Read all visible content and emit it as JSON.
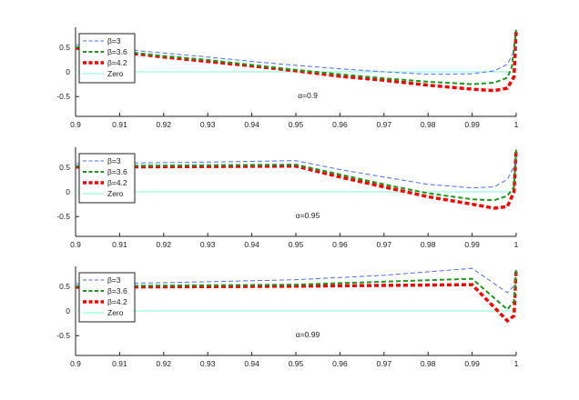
{
  "chart_data": [
    {
      "type": "line",
      "annotation": "α=0.9",
      "xlim": [
        0.9,
        1.0
      ],
      "ylim": [
        -0.9,
        0.9
      ],
      "xticks": [
        "0.9",
        "0.91",
        "0.92",
        "0.93",
        "0.94",
        "0.95",
        "0.96",
        "0.97",
        "0.98",
        "0.99",
        "1"
      ],
      "yticks": [
        "0.5",
        "0",
        "-0.5"
      ],
      "ytick_values": [
        0.5,
        0,
        -0.5
      ],
      "legend_position": "top-left",
      "series": [
        {
          "name": "β=3",
          "color": "#4b6cf5",
          "style": "thin-dashed",
          "x": [
            0.9,
            0.915,
            0.92,
            0.93,
            0.94,
            0.95,
            0.96,
            0.97,
            0.98,
            0.99,
            0.995,
            0.998,
            1.0
          ],
          "y": [
            0.55,
            0.42,
            0.38,
            0.3,
            0.21,
            0.13,
            0.06,
            0.0,
            -0.05,
            -0.04,
            0.02,
            0.15,
            0.5
          ]
        },
        {
          "name": "β=3.6",
          "color": "#1a9a1a",
          "style": "medium-dashed",
          "x": [
            0.9,
            0.915,
            0.92,
            0.93,
            0.94,
            0.95,
            0.96,
            0.97,
            0.98,
            0.99,
            0.995,
            0.998,
            0.999,
            1.0
          ],
          "y": [
            0.5,
            0.37,
            0.32,
            0.24,
            0.14,
            0.04,
            -0.05,
            -0.13,
            -0.2,
            -0.25,
            -0.22,
            -0.12,
            0.1,
            0.85
          ]
        },
        {
          "name": "β=4.2",
          "color": "#ff0000",
          "style": "thick-dashed",
          "x": [
            0.9,
            0.915,
            0.92,
            0.93,
            0.94,
            0.95,
            0.96,
            0.97,
            0.98,
            0.99,
            0.995,
            0.998,
            0.9995,
            1.0
          ],
          "y": [
            0.48,
            0.35,
            0.3,
            0.21,
            0.12,
            0.02,
            -0.09,
            -0.17,
            -0.27,
            -0.35,
            -0.38,
            -0.33,
            -0.1,
            0.85
          ]
        },
        {
          "name": "Zero",
          "color": "#7fffd4",
          "style": "solid",
          "x": [
            0.9,
            1.0
          ],
          "y": [
            0,
            0
          ]
        }
      ]
    },
    {
      "type": "line",
      "annotation": "α=0.95",
      "xlim": [
        0.9,
        1.0
      ],
      "ylim": [
        -0.9,
        0.9
      ],
      "xticks": [
        "0.9",
        "0.91",
        "0.92",
        "0.93",
        "0.94",
        "0.95",
        "0.96",
        "0.97",
        "0.98",
        "0.99",
        "1"
      ],
      "yticks": [
        "0.5",
        "0",
        "-0.5"
      ],
      "ytick_values": [
        0.5,
        0,
        -0.5
      ],
      "legend_position": "top-left",
      "series": [
        {
          "name": "β=3",
          "color": "#4b6cf5",
          "style": "thin-dashed",
          "x": [
            0.9,
            0.93,
            0.95,
            0.96,
            0.97,
            0.98,
            0.99,
            0.995,
            0.998,
            1.0
          ],
          "y": [
            0.57,
            0.6,
            0.63,
            0.45,
            0.3,
            0.15,
            0.08,
            0.1,
            0.25,
            0.6
          ]
        },
        {
          "name": "β=3.6",
          "color": "#1a9a1a",
          "style": "medium-dashed",
          "x": [
            0.9,
            0.95,
            0.96,
            0.97,
            0.98,
            0.99,
            0.995,
            0.998,
            0.9995,
            1.0
          ],
          "y": [
            0.52,
            0.55,
            0.35,
            0.15,
            -0.03,
            -0.15,
            -0.17,
            -0.08,
            0.1,
            0.85
          ]
        },
        {
          "name": "β=4.2",
          "color": "#ff0000",
          "style": "thick-dashed",
          "x": [
            0.9,
            0.95,
            0.96,
            0.97,
            0.98,
            0.99,
            0.995,
            0.998,
            0.9995,
            1.0
          ],
          "y": [
            0.5,
            0.52,
            0.3,
            0.1,
            -0.1,
            -0.25,
            -0.33,
            -0.3,
            0.0,
            0.85
          ]
        },
        {
          "name": "Zero",
          "color": "#7fffd4",
          "style": "solid",
          "x": [
            0.9,
            1.0
          ],
          "y": [
            0,
            0
          ]
        }
      ]
    },
    {
      "type": "line",
      "annotation": "α=0.99",
      "xlim": [
        0.9,
        1.0
      ],
      "ylim": [
        -0.9,
        0.9
      ],
      "xticks": [
        "0.9",
        "0.91",
        "0.92",
        "0.93",
        "0.94",
        "0.95",
        "0.96",
        "0.97",
        "0.98",
        "0.99",
        "1"
      ],
      "yticks": [
        "0.5",
        "0",
        "-0.5"
      ],
      "ytick_values": [
        0.5,
        0,
        -0.5
      ],
      "legend_position": "top-left",
      "series": [
        {
          "name": "β=3",
          "color": "#4b6cf5",
          "style": "thin-dashed",
          "x": [
            0.9,
            0.92,
            0.95,
            0.97,
            0.99,
            0.998,
            1.0
          ],
          "y": [
            0.55,
            0.57,
            0.63,
            0.72,
            0.86,
            0.37,
            0.55
          ]
        },
        {
          "name": "β=3.6",
          "color": "#1a9a1a",
          "style": "medium-dashed",
          "x": [
            0.9,
            0.95,
            0.99,
            0.998,
            0.9995,
            1.0
          ],
          "y": [
            0.5,
            0.53,
            0.65,
            0.03,
            0.2,
            0.85
          ]
        },
        {
          "name": "β=4.2",
          "color": "#ff0000",
          "style": "thick-dashed",
          "x": [
            0.9,
            0.95,
            0.99,
            0.998,
            0.9995,
            1.0
          ],
          "y": [
            0.48,
            0.5,
            0.53,
            -0.2,
            -0.1,
            0.85
          ]
        },
        {
          "name": "Zero",
          "color": "#7fffd4",
          "style": "solid",
          "x": [
            0.9,
            1.0
          ],
          "y": [
            0,
            0
          ]
        }
      ]
    }
  ]
}
